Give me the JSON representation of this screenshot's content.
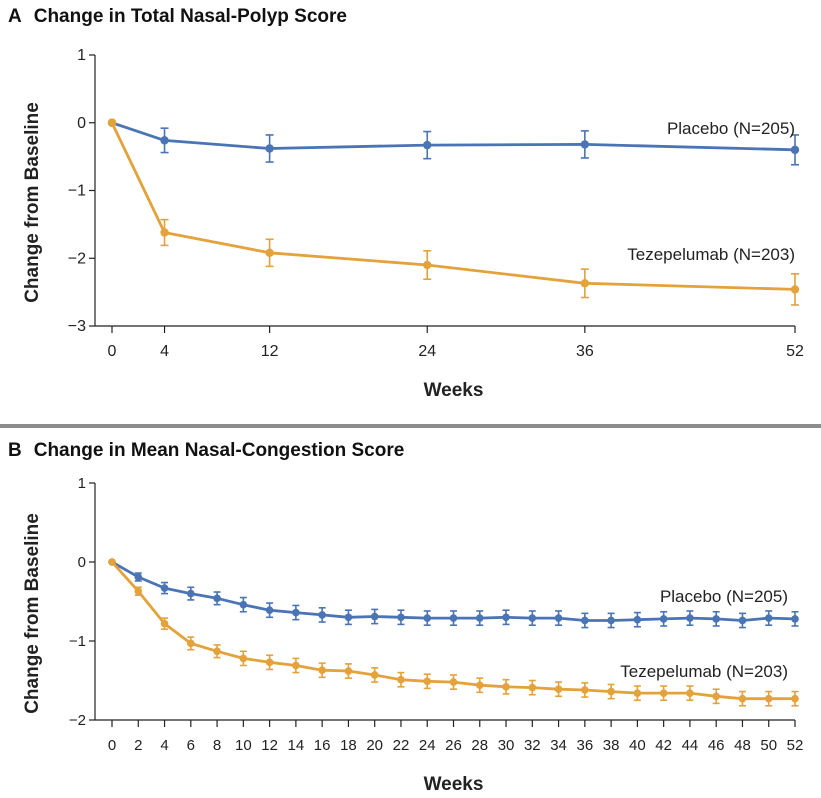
{
  "chart_data": [
    {
      "panel_letter": "A",
      "title": "Change in Total Nasal-Polyp Score",
      "type": "line",
      "xlabel": "Weeks",
      "ylabel": "Change from Baseline",
      "xlim": [
        0,
        52
      ],
      "ylim": [
        -3,
        1
      ],
      "xticks": [
        0,
        4,
        12,
        24,
        36,
        52
      ],
      "yticks": [
        1,
        0,
        -1,
        -2,
        -3
      ],
      "ytick_labels": [
        "1",
        "0",
        "−1",
        "−2",
        "−3"
      ],
      "series": [
        {
          "name": "Placebo (N=205)",
          "color": "#4a74b4",
          "x": [
            0,
            4,
            12,
            24,
            36,
            52
          ],
          "y": [
            0,
            -0.26,
            -0.38,
            -0.33,
            -0.32,
            -0.4
          ],
          "err": [
            0,
            0.18,
            0.2,
            0.2,
            0.2,
            0.22
          ]
        },
        {
          "name": "Tezepelumab (N=203)",
          "color": "#e3a23a",
          "x": [
            0,
            4,
            12,
            24,
            36,
            52
          ],
          "y": [
            0,
            -1.62,
            -1.92,
            -2.1,
            -2.37,
            -2.46
          ],
          "err": [
            0,
            0.19,
            0.2,
            0.21,
            0.21,
            0.23
          ]
        }
      ]
    },
    {
      "panel_letter": "B",
      "title": "Change in Mean Nasal-Congestion Score",
      "type": "line",
      "xlabel": "Weeks",
      "ylabel": "Change from Baseline",
      "xlim": [
        0,
        52
      ],
      "ylim": [
        -2,
        1
      ],
      "xticks": [
        0,
        2,
        4,
        6,
        8,
        10,
        12,
        14,
        16,
        18,
        20,
        22,
        24,
        26,
        28,
        30,
        32,
        34,
        36,
        38,
        40,
        42,
        44,
        46,
        48,
        50,
        52
      ],
      "yticks": [
        1,
        0,
        -1,
        -2
      ],
      "ytick_labels": [
        "1",
        "0",
        "−1",
        "−2"
      ],
      "series": [
        {
          "name": "Placebo (N=205)",
          "color": "#4a74b4",
          "x": [
            0,
            2,
            4,
            6,
            8,
            10,
            12,
            14,
            16,
            18,
            20,
            22,
            24,
            26,
            28,
            30,
            32,
            34,
            36,
            38,
            40,
            42,
            44,
            46,
            48,
            50,
            52
          ],
          "y": [
            0,
            -0.19,
            -0.33,
            -0.4,
            -0.46,
            -0.54,
            -0.61,
            -0.64,
            -0.67,
            -0.7,
            -0.69,
            -0.7,
            -0.71,
            -0.71,
            -0.71,
            -0.7,
            -0.71,
            -0.71,
            -0.74,
            -0.74,
            -0.73,
            -0.72,
            -0.71,
            -0.72,
            -0.74,
            -0.71,
            -0.72
          ],
          "err": [
            0,
            0.05,
            0.07,
            0.08,
            0.08,
            0.09,
            0.09,
            0.09,
            0.09,
            0.09,
            0.09,
            0.09,
            0.09,
            0.09,
            0.09,
            0.09,
            0.09,
            0.09,
            0.09,
            0.09,
            0.09,
            0.09,
            0.09,
            0.09,
            0.09,
            0.09,
            0.09
          ]
        },
        {
          "name": "Tezepelumab (N=203)",
          "color": "#e3a23a",
          "x": [
            0,
            2,
            4,
            6,
            8,
            10,
            12,
            14,
            16,
            18,
            20,
            22,
            24,
            26,
            28,
            30,
            32,
            34,
            36,
            38,
            40,
            42,
            44,
            46,
            48,
            50,
            52
          ],
          "y": [
            0,
            -0.37,
            -0.78,
            -1.03,
            -1.13,
            -1.22,
            -1.27,
            -1.31,
            -1.37,
            -1.38,
            -1.43,
            -1.49,
            -1.51,
            -1.52,
            -1.56,
            -1.58,
            -1.59,
            -1.61,
            -1.62,
            -1.64,
            -1.66,
            -1.66,
            -1.66,
            -1.7,
            -1.73,
            -1.73,
            -1.73
          ],
          "err": [
            0,
            0.05,
            0.07,
            0.08,
            0.08,
            0.09,
            0.09,
            0.09,
            0.09,
            0.09,
            0.09,
            0.09,
            0.09,
            0.09,
            0.09,
            0.09,
            0.09,
            0.09,
            0.09,
            0.09,
            0.09,
            0.09,
            0.09,
            0.09,
            0.09,
            0.09,
            0.09
          ]
        }
      ]
    }
  ]
}
